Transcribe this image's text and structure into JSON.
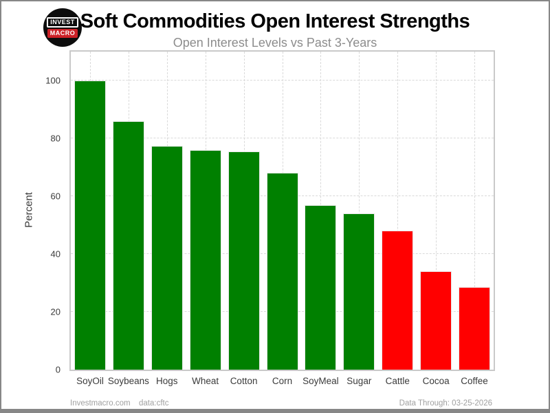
{
  "header": {
    "logo": {
      "line1": "INVEST",
      "line2": "MACRO",
      "bg_color": "#0d0d0d",
      "accent_color": "#cc2127"
    },
    "title": "Soft Commodities Open Interest Strengths",
    "subtitle": "Open Interest Levels vs Past 3-Years"
  },
  "chart_data": {
    "type": "bar",
    "title": "Soft Commodities Open Interest Strengths",
    "subtitle": "Open Interest Levels vs Past 3-Years",
    "categories": [
      "SoyOil",
      "Soybeans",
      "Hogs",
      "Wheat",
      "Cotton",
      "Corn",
      "SoyMeal",
      "Sugar",
      "Cattle",
      "Cocoa",
      "Coffee"
    ],
    "values": [
      100,
      86,
      77.5,
      76,
      75.5,
      68,
      57,
      54,
      48,
      34,
      28.5
    ],
    "bar_colors": [
      "#008000",
      "#008000",
      "#008000",
      "#008000",
      "#008000",
      "#008000",
      "#008000",
      "#008000",
      "#ff0000",
      "#ff0000",
      "#ff0000"
    ],
    "green_color": "#008000",
    "red_color": "#ff0000",
    "xlabel": "",
    "ylabel": "Percent",
    "yticks": [
      0,
      20,
      40,
      60,
      80,
      100
    ],
    "ylim": [
      0,
      110
    ],
    "grid": "dashed-horizontal-and-vertical",
    "legend_position": "none"
  },
  "footer": {
    "site": "Investmacro.com",
    "source": "data:cftc",
    "data_through": "Data Through: 03-25-2026"
  }
}
